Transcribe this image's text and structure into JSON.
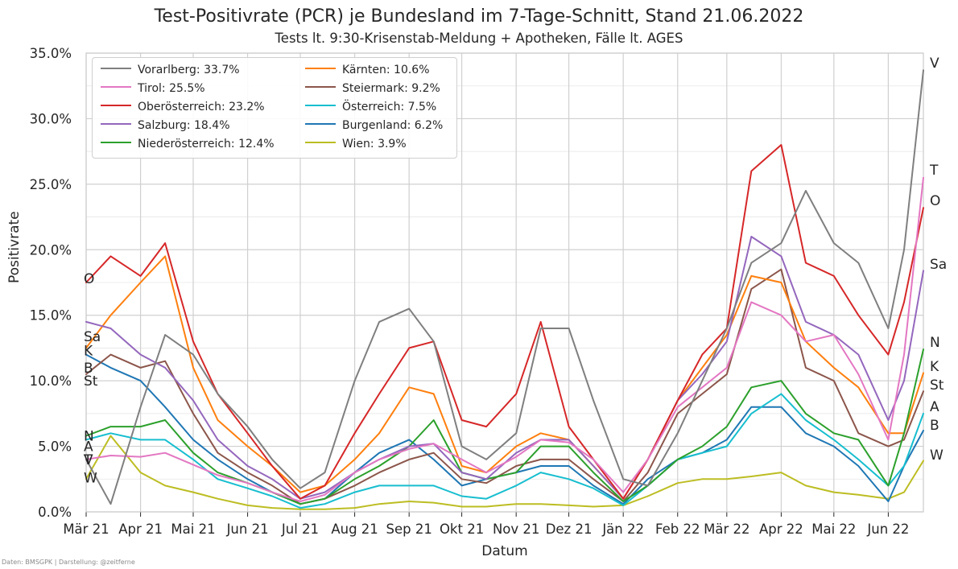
{
  "title": "Test-Positivrate (PCR) je Bundesland im 7-Tage-Schnitt, Stand 21.06.2022",
  "subtitle": "Tests lt. 9:30-Krisenstab-Meldung + Apotheken, Fälle lt. AGES",
  "credit": "Daten: BMSGPK | Darstellung: @zeitferne",
  "legend_entries": [
    {
      "label": "Vorarlberg: 33.7%",
      "color": "#7f7f7f"
    },
    {
      "label": "Tirol: 25.5%",
      "color": "#e377c2"
    },
    {
      "label": "Oberösterreich: 23.2%",
      "color": "#d62728"
    },
    {
      "label": "Salzburg: 18.4%",
      "color": "#9467bd"
    },
    {
      "label": "Niederösterreich: 12.4%",
      "color": "#2ca02c"
    },
    {
      "label": "Kärnten: 10.6%",
      "color": "#ff7f0e"
    },
    {
      "label": "Steiermark: 9.2%",
      "color": "#8c564b"
    },
    {
      "label": "Österreich: 7.5%",
      "color": "#17becf"
    },
    {
      "label": "Burgenland: 6.2%",
      "color": "#1f77b4"
    },
    {
      "label": "Wien: 3.9%",
      "color": "#bcbd22"
    }
  ],
  "chart_data": {
    "type": "line",
    "title": "Test-Positivrate (PCR) je Bundesland im 7-Tage-Schnitt, Stand 21.06.2022",
    "subtitle": "Tests lt. 9:30-Krisenstab-Meldung + Apotheken, Fälle lt. AGES",
    "xlabel": "Datum",
    "ylabel": "Positivrate",
    "ylim": [
      0,
      35
    ],
    "yticks": [
      0,
      5,
      10,
      15,
      20,
      25,
      30,
      35
    ],
    "ytick_labels": [
      "0.0%",
      "5.0%",
      "10.0%",
      "15.0%",
      "20.0%",
      "25.0%",
      "30.0%",
      "35.0%"
    ],
    "xlim": [
      "2021-03-01",
      "2022-06-21"
    ],
    "xticks": [
      "2021-03-01",
      "2021-04-01",
      "2021-05-01",
      "2021-06-01",
      "2021-07-01",
      "2021-08-01",
      "2021-09-01",
      "2021-10-01",
      "2021-11-01",
      "2021-12-01",
      "2022-01-01",
      "2022-02-01",
      "2022-03-01",
      "2022-04-01",
      "2022-05-01",
      "2022-06-01"
    ],
    "xtick_labels": [
      "Mär 21",
      "Apr 21",
      "Mai 21",
      "Jun 21",
      "Jul 21",
      "Aug 21",
      "Sep 21",
      "Okt 21",
      "Nov 21",
      "Dez 21",
      "Jän 22",
      "Feb 22",
      "Mär 22",
      "Apr 22",
      "Mai 22",
      "Jun 22"
    ],
    "grid": true,
    "legend_position": "upper-left",
    "x": [
      "2021-03-01",
      "2021-03-15",
      "2021-04-01",
      "2021-04-15",
      "2021-05-01",
      "2021-05-15",
      "2021-06-01",
      "2021-06-15",
      "2021-07-01",
      "2021-07-15",
      "2021-08-01",
      "2021-08-15",
      "2021-09-01",
      "2021-09-15",
      "2021-10-01",
      "2021-10-15",
      "2021-11-01",
      "2021-11-15",
      "2021-12-01",
      "2021-12-15",
      "2022-01-01",
      "2022-01-15",
      "2022-02-01",
      "2022-02-15",
      "2022-03-01",
      "2022-03-15",
      "2022-04-01",
      "2022-04-15",
      "2022-05-01",
      "2022-05-15",
      "2022-06-01",
      "2022-06-10",
      "2022-06-21"
    ],
    "series": [
      {
        "name": "Vorarlberg",
        "color": "#7f7f7f",
        "values": [
          4.0,
          0.6,
          8.0,
          13.5,
          12.0,
          9.0,
          6.5,
          4.0,
          1.8,
          3.0,
          10.0,
          14.5,
          15.5,
          13.0,
          5.0,
          4.0,
          6.0,
          14.0,
          14.0,
          8.5,
          2.5,
          2.0,
          6.0,
          10.0,
          14.0,
          19.0,
          20.5,
          24.5,
          20.5,
          19.0,
          14.0,
          20.0,
          33.7
        ]
      },
      {
        "name": "Tirol",
        "color": "#e377c2",
        "values": [
          4.0,
          4.3,
          4.2,
          4.5,
          3.6,
          2.8,
          2.2,
          1.5,
          0.8,
          1.3,
          3.0,
          4.0,
          4.8,
          5.2,
          4.0,
          3.0,
          4.2,
          5.5,
          5.3,
          4.0,
          1.5,
          4.0,
          8.0,
          9.5,
          11.0,
          16.0,
          15.0,
          13.0,
          13.5,
          10.5,
          5.5,
          12.0,
          25.5
        ]
      },
      {
        "name": "Oberösterreich",
        "color": "#d62728",
        "values": [
          17.5,
          19.5,
          18.0,
          20.5,
          13.0,
          9.0,
          6.0,
          3.5,
          1.0,
          2.0,
          6.0,
          9.0,
          12.5,
          13.0,
          7.0,
          6.5,
          9.0,
          14.5,
          6.5,
          4.0,
          1.0,
          4.0,
          8.5,
          12.0,
          14.0,
          26.0,
          28.0,
          19.0,
          18.0,
          15.0,
          12.0,
          16.0,
          23.2
        ]
      },
      {
        "name": "Salzburg",
        "color": "#9467bd",
        "values": [
          14.5,
          14.0,
          12.0,
          11.0,
          8.5,
          5.5,
          3.5,
          2.5,
          1.0,
          1.5,
          3.0,
          4.0,
          5.0,
          5.2,
          3.0,
          2.5,
          4.5,
          5.5,
          5.5,
          3.5,
          1.0,
          4.0,
          8.5,
          10.5,
          13.0,
          21.0,
          19.5,
          14.5,
          13.5,
          12.0,
          7.0,
          10.0,
          18.4
        ]
      },
      {
        "name": "Niederösterreich",
        "color": "#2ca02c",
        "values": [
          5.8,
          6.5,
          6.5,
          7.0,
          4.5,
          3.0,
          2.2,
          1.5,
          0.6,
          1.0,
          2.5,
          3.5,
          5.0,
          7.0,
          3.0,
          2.5,
          3.0,
          5.0,
          5.0,
          3.0,
          0.8,
          2.0,
          4.0,
          5.0,
          6.5,
          9.5,
          10.0,
          7.5,
          6.0,
          5.5,
          2.0,
          6.0,
          12.4
        ]
      },
      {
        "name": "Kärnten",
        "color": "#ff7f0e",
        "values": [
          12.5,
          15.0,
          17.5,
          19.5,
          11.0,
          7.0,
          5.0,
          3.5,
          1.5,
          2.0,
          4.0,
          6.0,
          9.5,
          9.0,
          3.5,
          3.0,
          5.0,
          6.0,
          5.5,
          3.5,
          1.0,
          4.0,
          8.5,
          11.0,
          13.5,
          18.0,
          17.5,
          13.0,
          11.0,
          9.5,
          6.0,
          6.0,
          10.6
        ]
      },
      {
        "name": "Steiermark",
        "color": "#8c564b",
        "values": [
          10.5,
          12.0,
          11.0,
          11.5,
          7.5,
          4.5,
          3.0,
          2.0,
          0.6,
          1.0,
          2.0,
          3.0,
          4.0,
          4.5,
          2.5,
          2.2,
          3.5,
          4.0,
          4.0,
          2.5,
          0.8,
          3.0,
          7.5,
          9.0,
          10.5,
          17.0,
          18.5,
          11.0,
          10.0,
          6.0,
          5.0,
          5.5,
          9.2
        ]
      },
      {
        "name": "Österreich",
        "color": "#17becf",
        "values": [
          5.5,
          6.0,
          5.5,
          5.5,
          4.0,
          2.5,
          1.8,
          1.2,
          0.3,
          0.6,
          1.5,
          2.0,
          2.0,
          2.0,
          1.2,
          1.0,
          2.0,
          3.0,
          2.5,
          1.8,
          0.5,
          2.0,
          4.0,
          4.5,
          5.0,
          7.5,
          9.0,
          7.0,
          5.5,
          4.0,
          2.0,
          3.5,
          7.5
        ]
      },
      {
        "name": "Burgenland",
        "color": "#1f77b4",
        "values": [
          12.0,
          11.0,
          10.0,
          8.0,
          5.5,
          4.0,
          2.5,
          1.5,
          0.6,
          1.0,
          3.0,
          4.5,
          5.5,
          4.0,
          2.0,
          2.5,
          3.0,
          3.5,
          3.5,
          2.0,
          0.6,
          2.5,
          4.0,
          4.5,
          5.5,
          8.0,
          8.0,
          6.0,
          5.0,
          3.5,
          0.8,
          3.5,
          6.2
        ]
      },
      {
        "name": "Wien",
        "color": "#bcbd22",
        "values": [
          2.5,
          5.8,
          3.0,
          2.0,
          1.5,
          1.0,
          0.5,
          0.3,
          0.2,
          0.2,
          0.3,
          0.6,
          0.8,
          0.7,
          0.4,
          0.4,
          0.6,
          0.6,
          0.5,
          0.4,
          0.5,
          1.2,
          2.2,
          2.5,
          2.5,
          2.7,
          3.0,
          2.0,
          1.5,
          1.3,
          1.0,
          1.5,
          3.9
        ]
      }
    ],
    "start_labels": [
      "O",
      "Sa",
      "K",
      "B",
      "St",
      "N",
      "A",
      "T",
      "V",
      "W"
    ],
    "end_labels": [
      "V",
      "T",
      "O",
      "Sa",
      "N",
      "K",
      "St",
      "A",
      "B",
      "W"
    ]
  }
}
